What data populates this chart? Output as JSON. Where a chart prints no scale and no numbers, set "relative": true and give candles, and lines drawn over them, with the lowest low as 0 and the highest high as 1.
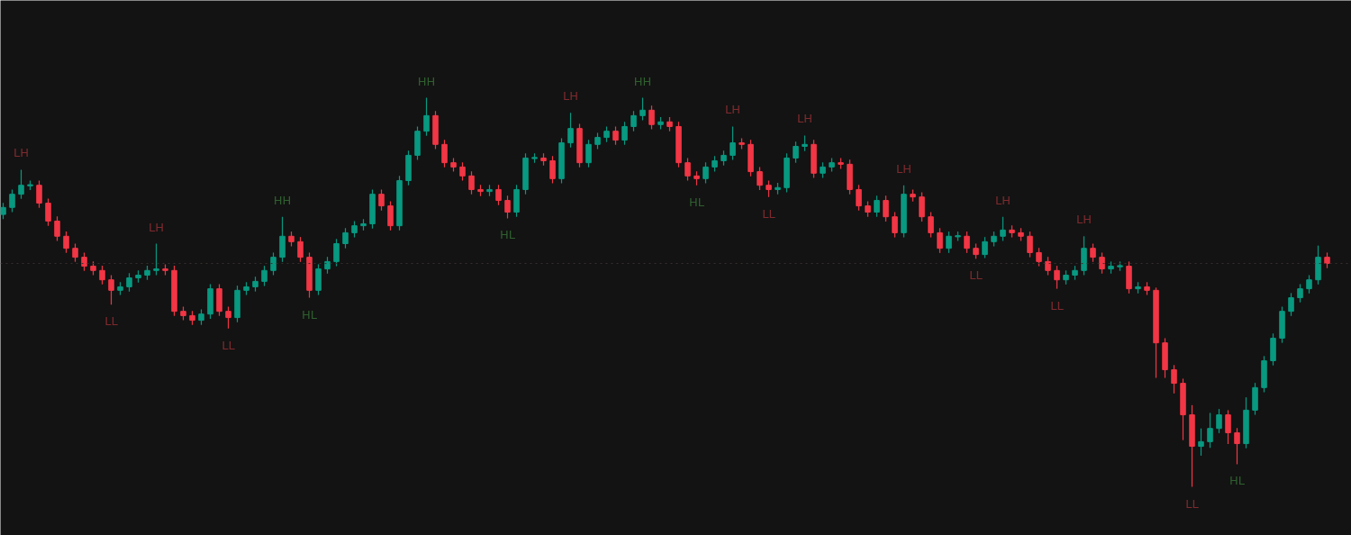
{
  "chart_data": {
    "type": "candlestick",
    "relative": true,
    "categories": [
      null,
      null,
      null,
      null,
      null,
      null,
      null,
      null,
      null,
      null,
      null,
      null,
      null,
      null,
      null,
      null,
      null,
      null,
      null,
      null,
      null,
      null,
      null,
      null,
      null,
      null,
      null,
      null,
      null,
      null,
      null,
      null,
      null,
      null,
      null,
      null,
      null,
      null,
      null,
      null,
      null,
      null,
      null,
      null,
      null,
      null,
      null,
      null,
      null,
      null,
      null,
      null,
      null,
      null,
      null,
      null,
      null,
      null,
      null,
      null,
      null,
      null,
      null,
      null,
      null,
      null,
      null,
      null,
      null,
      null,
      null,
      null,
      null,
      null,
      null,
      null,
      null,
      null,
      null,
      null,
      null,
      null,
      null,
      null,
      null,
      null,
      null,
      null,
      null,
      null,
      null,
      null,
      null,
      null,
      null,
      null,
      null,
      null,
      null,
      null,
      null,
      null,
      null,
      null,
      null,
      null,
      null,
      null,
      null,
      null,
      null,
      null,
      null,
      null,
      null,
      null,
      null,
      null,
      null,
      null,
      null,
      null,
      null,
      null,
      null,
      null,
      null,
      null,
      null,
      null,
      null,
      null,
      null,
      null,
      null,
      null,
      null,
      null,
      null,
      null,
      null,
      null,
      null,
      null,
      null,
      null,
      null,
      null
    ],
    "ohlc": [
      [
        0.7,
        0.73,
        0.688,
        0.718
      ],
      [
        0.718,
        0.764,
        0.706,
        0.752
      ],
      [
        0.752,
        0.815,
        0.74,
        0.775
      ],
      [
        0.775,
        0.787,
        0.763,
        0.775
      ],
      [
        0.775,
        0.787,
        0.717,
        0.729
      ],
      [
        0.729,
        0.741,
        0.671,
        0.683
      ],
      [
        0.683,
        0.695,
        0.632,
        0.644
      ],
      [
        0.644,
        0.656,
        0.601,
        0.613
      ],
      [
        0.613,
        0.625,
        0.578,
        0.59
      ],
      [
        0.59,
        0.602,
        0.555,
        0.567
      ],
      [
        0.567,
        0.579,
        0.544,
        0.556
      ],
      [
        0.556,
        0.568,
        0.52,
        0.532
      ],
      [
        0.532,
        0.544,
        0.468,
        0.505
      ],
      [
        0.505,
        0.526,
        0.493,
        0.514
      ],
      [
        0.514,
        0.549,
        0.502,
        0.537
      ],
      [
        0.537,
        0.556,
        0.525,
        0.544
      ],
      [
        0.544,
        0.568,
        0.532,
        0.556
      ],
      [
        0.556,
        0.625,
        0.544,
        0.56
      ],
      [
        0.56,
        0.572,
        0.544,
        0.556
      ],
      [
        0.556,
        0.568,
        0.439,
        0.451
      ],
      [
        0.451,
        0.463,
        0.428,
        0.44
      ],
      [
        0.44,
        0.452,
        0.416,
        0.428
      ],
      [
        0.428,
        0.456,
        0.416,
        0.444
      ],
      [
        0.444,
        0.521,
        0.432,
        0.509
      ],
      [
        0.509,
        0.521,
        0.439,
        0.451
      ],
      [
        0.451,
        0.463,
        0.407,
        0.435
      ],
      [
        0.435,
        0.517,
        0.423,
        0.505
      ],
      [
        0.505,
        0.526,
        0.493,
        0.514
      ],
      [
        0.514,
        0.54,
        0.502,
        0.528
      ],
      [
        0.528,
        0.568,
        0.516,
        0.556
      ],
      [
        0.556,
        0.602,
        0.544,
        0.59
      ],
      [
        0.59,
        0.694,
        0.578,
        0.644
      ],
      [
        0.644,
        0.656,
        0.618,
        0.63
      ],
      [
        0.63,
        0.642,
        0.578,
        0.59
      ],
      [
        0.59,
        0.602,
        0.486,
        0.505
      ],
      [
        0.505,
        0.572,
        0.493,
        0.56
      ],
      [
        0.56,
        0.591,
        0.548,
        0.579
      ],
      [
        0.579,
        0.637,
        0.567,
        0.625
      ],
      [
        0.625,
        0.665,
        0.613,
        0.653
      ],
      [
        0.653,
        0.683,
        0.641,
        0.671
      ],
      [
        0.671,
        0.688,
        0.659,
        0.676
      ],
      [
        0.676,
        0.764,
        0.664,
        0.752
      ],
      [
        0.752,
        0.764,
        0.71,
        0.722
      ],
      [
        0.722,
        0.734,
        0.659,
        0.671
      ],
      [
        0.671,
        0.799,
        0.659,
        0.787
      ],
      [
        0.787,
        0.864,
        0.775,
        0.852
      ],
      [
        0.852,
        0.926,
        0.84,
        0.914
      ],
      [
        0.914,
        1.0,
        0.902,
        0.954
      ],
      [
        0.954,
        0.966,
        0.868,
        0.88
      ],
      [
        0.88,
        0.892,
        0.821,
        0.833
      ],
      [
        0.833,
        0.845,
        0.81,
        0.822
      ],
      [
        0.822,
        0.834,
        0.787,
        0.799
      ],
      [
        0.799,
        0.811,
        0.752,
        0.764
      ],
      [
        0.764,
        0.776,
        0.747,
        0.759
      ],
      [
        0.759,
        0.776,
        0.747,
        0.764
      ],
      [
        0.764,
        0.776,
        0.724,
        0.736
      ],
      [
        0.736,
        0.748,
        0.69,
        0.706
      ],
      [
        0.706,
        0.776,
        0.694,
        0.764
      ],
      [
        0.764,
        0.857,
        0.752,
        0.845
      ],
      [
        0.845,
        0.857,
        0.833,
        0.845
      ],
      [
        0.845,
        0.857,
        0.826,
        0.838
      ],
      [
        0.838,
        0.85,
        0.78,
        0.792
      ],
      [
        0.792,
        0.896,
        0.78,
        0.884
      ],
      [
        0.884,
        0.961,
        0.872,
        0.921
      ],
      [
        0.921,
        0.933,
        0.821,
        0.833
      ],
      [
        0.833,
        0.892,
        0.821,
        0.88
      ],
      [
        0.88,
        0.91,
        0.868,
        0.898
      ],
      [
        0.898,
        0.926,
        0.886,
        0.914
      ],
      [
        0.914,
        0.926,
        0.879,
        0.891
      ],
      [
        0.891,
        0.938,
        0.879,
        0.926
      ],
      [
        0.926,
        0.966,
        0.914,
        0.954
      ],
      [
        0.954,
        1.0,
        0.942,
        0.968
      ],
      [
        0.968,
        0.98,
        0.919,
        0.931
      ],
      [
        0.931,
        0.95,
        0.919,
        0.938
      ],
      [
        0.938,
        0.95,
        0.914,
        0.926
      ],
      [
        0.926,
        0.938,
        0.821,
        0.833
      ],
      [
        0.833,
        0.845,
        0.787,
        0.799
      ],
      [
        0.799,
        0.811,
        0.775,
        0.792
      ],
      [
        0.792,
        0.834,
        0.78,
        0.822
      ],
      [
        0.822,
        0.85,
        0.81,
        0.838
      ],
      [
        0.838,
        0.864,
        0.826,
        0.852
      ],
      [
        0.852,
        0.926,
        0.84,
        0.884
      ],
      [
        0.884,
        0.896,
        0.868,
        0.88
      ],
      [
        0.88,
        0.892,
        0.798,
        0.81
      ],
      [
        0.81,
        0.822,
        0.763,
        0.775
      ],
      [
        0.775,
        0.787,
        0.745,
        0.764
      ],
      [
        0.764,
        0.781,
        0.752,
        0.769
      ],
      [
        0.769,
        0.857,
        0.757,
        0.845
      ],
      [
        0.845,
        0.887,
        0.833,
        0.875
      ],
      [
        0.875,
        0.903,
        0.863,
        0.88
      ],
      [
        0.88,
        0.892,
        0.794,
        0.806
      ],
      [
        0.806,
        0.834,
        0.794,
        0.822
      ],
      [
        0.822,
        0.845,
        0.81,
        0.833
      ],
      [
        0.833,
        0.845,
        0.817,
        0.829
      ],
      [
        0.829,
        0.841,
        0.752,
        0.764
      ],
      [
        0.764,
        0.776,
        0.71,
        0.722
      ],
      [
        0.722,
        0.734,
        0.694,
        0.706
      ],
      [
        0.706,
        0.748,
        0.694,
        0.736
      ],
      [
        0.736,
        0.748,
        0.682,
        0.694
      ],
      [
        0.694,
        0.706,
        0.641,
        0.653
      ],
      [
        0.653,
        0.775,
        0.641,
        0.752
      ],
      [
        0.752,
        0.764,
        0.733,
        0.745
      ],
      [
        0.745,
        0.757,
        0.682,
        0.694
      ],
      [
        0.694,
        0.706,
        0.641,
        0.653
      ],
      [
        0.653,
        0.665,
        0.601,
        0.613
      ],
      [
        0.613,
        0.656,
        0.601,
        0.644
      ],
      [
        0.644,
        0.656,
        0.632,
        0.644
      ],
      [
        0.644,
        0.656,
        0.601,
        0.613
      ],
      [
        0.613,
        0.625,
        0.586,
        0.597
      ],
      [
        0.597,
        0.642,
        0.588,
        0.63
      ],
      [
        0.63,
        0.656,
        0.618,
        0.644
      ],
      [
        0.644,
        0.694,
        0.632,
        0.66
      ],
      [
        0.66,
        0.672,
        0.641,
        0.653
      ],
      [
        0.653,
        0.665,
        0.632,
        0.644
      ],
      [
        0.644,
        0.656,
        0.59,
        0.602
      ],
      [
        0.602,
        0.614,
        0.567,
        0.579
      ],
      [
        0.579,
        0.591,
        0.544,
        0.556
      ],
      [
        0.556,
        0.568,
        0.509,
        0.532
      ],
      [
        0.532,
        0.556,
        0.52,
        0.544
      ],
      [
        0.544,
        0.568,
        0.532,
        0.556
      ],
      [
        0.556,
        0.644,
        0.544,
        0.613
      ],
      [
        0.613,
        0.625,
        0.578,
        0.59
      ],
      [
        0.59,
        0.602,
        0.548,
        0.56
      ],
      [
        0.56,
        0.579,
        0.548,
        0.567
      ],
      [
        0.567,
        0.579,
        0.555,
        0.567
      ],
      [
        0.567,
        0.579,
        0.497,
        0.509
      ],
      [
        0.509,
        0.526,
        0.497,
        0.514
      ],
      [
        0.514,
        0.526,
        0.493,
        0.505
      ],
      [
        0.505,
        0.512,
        0.28,
        0.37
      ],
      [
        0.37,
        0.382,
        0.28,
        0.301
      ],
      [
        0.301,
        0.313,
        0.24,
        0.266
      ],
      [
        0.266,
        0.278,
        0.12,
        0.185
      ],
      [
        0.185,
        0.21,
        0.0,
        0.104
      ],
      [
        0.104,
        0.15,
        0.08,
        0.116
      ],
      [
        0.116,
        0.19,
        0.1,
        0.15
      ],
      [
        0.15,
        0.2,
        0.138,
        0.185
      ],
      [
        0.185,
        0.197,
        0.11,
        0.139
      ],
      [
        0.139,
        0.151,
        0.058,
        0.111
      ],
      [
        0.111,
        0.23,
        0.099,
        0.197
      ],
      [
        0.197,
        0.267,
        0.185,
        0.255
      ],
      [
        0.255,
        0.336,
        0.243,
        0.324
      ],
      [
        0.324,
        0.394,
        0.312,
        0.382
      ],
      [
        0.382,
        0.463,
        0.37,
        0.451
      ],
      [
        0.451,
        0.498,
        0.439,
        0.486
      ],
      [
        0.486,
        0.521,
        0.474,
        0.509
      ],
      [
        0.509,
        0.544,
        0.497,
        0.532
      ],
      [
        0.532,
        0.62,
        0.52,
        0.59
      ],
      [
        0.59,
        0.602,
        0.562,
        0.574
      ]
    ],
    "colors": [
      "#089981",
      "#089981",
      "#089981",
      "#089981",
      "#f23645",
      "#f23645",
      "#f23645",
      "#f23645",
      "#f23645",
      "#f23645",
      "#f23645",
      "#f23645",
      "#f23645",
      "#089981",
      "#089981",
      "#089981",
      "#089981",
      "#089981",
      "#f23645",
      "#f23645",
      "#f23645",
      "#f23645",
      "#089981",
      "#089981",
      "#f23645",
      "#f23645",
      "#089981",
      "#089981",
      "#089981",
      "#089981",
      "#089981",
      "#089981",
      "#f23645",
      "#f23645",
      "#f23645",
      "#089981",
      "#089981",
      "#089981",
      "#089981",
      "#089981",
      "#089981",
      "#089981",
      "#f23645",
      "#f23645",
      "#089981",
      "#089981",
      "#089981",
      "#089981",
      "#f23645",
      "#f23645",
      "#f23645",
      "#f23645",
      "#f23645",
      "#f23645",
      "#089981",
      "#f23645",
      "#f23645",
      "#089981",
      "#089981",
      "#089981",
      "#f23645",
      "#f23645",
      "#089981",
      "#089981",
      "#f23645",
      "#089981",
      "#089981",
      "#089981",
      "#f23645",
      "#089981",
      "#089981",
      "#089981",
      "#f23645",
      "#089981",
      "#f23645",
      "#f23645",
      "#f23645",
      "#f23645",
      "#089981",
      "#089981",
      "#089981",
      "#089981",
      "#f23645",
      "#f23645",
      "#f23645",
      "#f23645",
      "#089981",
      "#089981",
      "#089981",
      "#089981",
      "#f23645",
      "#089981",
      "#089981",
      "#f23645",
      "#f23645",
      "#f23645",
      "#f23645",
      "#089981",
      "#f23645",
      "#f23645",
      "#089981",
      "#f23645",
      "#f23645",
      "#f23645",
      "#f23645",
      "#089981",
      "#089981",
      "#f23645",
      "#f23645",
      "#089981",
      "#089981",
      "#089981",
      "#f23645",
      "#f23645",
      "#f23645",
      "#f23645",
      "#f23645",
      "#f23645",
      "#089981",
      "#089981",
      "#089981",
      "#f23645",
      "#f23645",
      "#089981",
      "#089981",
      "#f23645",
      "#089981",
      "#f23645",
      "#f23645",
      "#f23645",
      "#f23645",
      "#f23645",
      "#f23645",
      "#089981",
      "#089981",
      "#089981",
      "#f23645",
      "#f23645",
      "#089981",
      "#089981",
      "#089981",
      "#089981",
      "#089981",
      "#089981",
      "#089981",
      "#089981",
      "#089981",
      "#f23645"
    ],
    "ref_lines": [
      {
        "axis": "y",
        "value": 0.574,
        "color": "#3a3030",
        "line_style": "dotted"
      }
    ],
    "annotations": [
      {
        "text": "LH",
        "y": 0.815
      },
      {
        "text": "LL",
        "y": 0.468
      },
      {
        "text": "LH",
        "y": 0.625
      },
      {
        "text": "LL",
        "y": 0.407
      },
      {
        "text": "HH",
        "y": 0.694
      },
      {
        "text": "HL",
        "y": 0.486
      },
      {
        "text": "HH",
        "y": 1.0
      },
      {
        "text": "HL",
        "y": 0.69
      },
      {
        "text": "LH",
        "y": 0.961
      },
      {
        "text": "HH",
        "y": 1.0
      },
      {
        "text": "HL",
        "y": 0.775
      },
      {
        "text": "LH",
        "y": 0.926
      },
      {
        "text": "LL",
        "y": 0.745
      },
      {
        "text": "LH",
        "y": 0.903
      },
      {
        "text": "LH",
        "y": 0.775
      },
      {
        "text": "LL",
        "y": 0.586
      },
      {
        "text": "LH",
        "y": 0.694
      },
      {
        "text": "LL",
        "y": 0.509
      },
      {
        "text": "LH",
        "y": 0.644
      },
      {
        "text": "LL",
        "y": 0.0
      },
      {
        "text": "HL",
        "y": 0.058
      }
    ]
  }
}
